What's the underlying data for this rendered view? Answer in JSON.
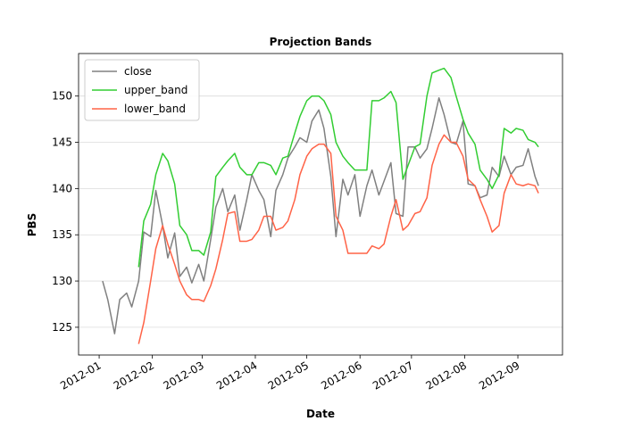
{
  "chart_data": {
    "type": "line",
    "title": "Projection Bands",
    "x_label": "Date",
    "y_label": "PBS",
    "x": [
      "2012-01-03",
      "2012-01-06",
      "2012-01-10",
      "2012-01-13",
      "2012-01-17",
      "2012-01-20",
      "2012-01-24",
      "2012-01-27",
      "2012-01-31",
      "2012-02-03",
      "2012-02-07",
      "2012-02-10",
      "2012-02-14",
      "2012-02-17",
      "2012-02-21",
      "2012-02-24",
      "2012-02-28",
      "2012-03-02",
      "2012-03-06",
      "2012-03-09",
      "2012-03-13",
      "2012-03-16",
      "2012-03-20",
      "2012-03-23",
      "2012-03-27",
      "2012-03-30",
      "2012-04-03",
      "2012-04-06",
      "2012-04-10",
      "2012-04-13",
      "2012-04-17",
      "2012-04-20",
      "2012-04-24",
      "2012-04-27",
      "2012-05-01",
      "2012-05-04",
      "2012-05-08",
      "2012-05-11",
      "2012-05-15",
      "2012-05-18",
      "2012-05-22",
      "2012-05-25",
      "2012-05-29",
      "2012-06-01",
      "2012-06-05",
      "2012-06-08",
      "2012-06-12",
      "2012-06-15",
      "2012-06-19",
      "2012-06-22",
      "2012-06-26",
      "2012-06-29",
      "2012-07-03",
      "2012-07-06",
      "2012-07-10",
      "2012-07-13",
      "2012-07-17",
      "2012-07-20",
      "2012-07-24",
      "2012-07-27",
      "2012-07-31",
      "2012-08-03",
      "2012-08-07",
      "2012-08-10",
      "2012-08-14",
      "2012-08-17",
      "2012-08-21",
      "2012-08-24",
      "2012-08-28",
      "2012-08-31",
      "2012-09-04",
      "2012-09-07",
      "2012-09-11",
      "2012-09-13"
    ],
    "series": [
      {
        "name": "close",
        "color": "#808080",
        "values": [
          130,
          128,
          124.3,
          128,
          128.7,
          127.2,
          130,
          135.3,
          134.8,
          139.8,
          136,
          132.5,
          135.2,
          130.5,
          131.5,
          129.8,
          131.8,
          130,
          134.5,
          138,
          140,
          137.5,
          139.3,
          135.5,
          138.8,
          141.5,
          139.8,
          138.8,
          134.8,
          139.8,
          141.5,
          143.3,
          144.5,
          145.5,
          145,
          147.3,
          148.5,
          146.5,
          141.3,
          134.8,
          141,
          139.3,
          141.5,
          137,
          140.3,
          142,
          139.3,
          140.8,
          142.8,
          137.3,
          137,
          144.5,
          144.5,
          143.3,
          144.3,
          146.5,
          149.8,
          148,
          145,
          144.8,
          147.3,
          140.5,
          140.3,
          139,
          139.3,
          142.3,
          141.3,
          143.5,
          141.5,
          142.3,
          142.5,
          144.3,
          141.3,
          140.3
        ]
      },
      {
        "name": "upper_band",
        "color": "#32cd32",
        "values": [
          null,
          null,
          null,
          null,
          null,
          null,
          131.5,
          136.5,
          138.3,
          141.5,
          143.8,
          143,
          140.5,
          136,
          135,
          133.3,
          133.3,
          132.8,
          135.3,
          141.3,
          142.3,
          143,
          143.8,
          142.3,
          141.5,
          141.5,
          142.8,
          142.8,
          142.5,
          141.5,
          143.3,
          143.5,
          146,
          147.8,
          149.5,
          150,
          150,
          149.5,
          148,
          145,
          143.5,
          142.8,
          142,
          142,
          142,
          149.5,
          149.5,
          149.8,
          150.5,
          149.3,
          141,
          142.5,
          144.5,
          144.8,
          150,
          152.5,
          152.8,
          153,
          152,
          150,
          147.5,
          146,
          144.8,
          142,
          141,
          140,
          141.5,
          146.5,
          146,
          146.5,
          146.3,
          145.3,
          145,
          144.5
        ]
      },
      {
        "name": "lower_band",
        "color": "#ff6347",
        "values": [
          null,
          null,
          null,
          null,
          null,
          null,
          123.2,
          125.5,
          130,
          133.5,
          136,
          134,
          131.8,
          130,
          128.5,
          128,
          128,
          127.8,
          129.5,
          131.3,
          134.5,
          137.3,
          137.5,
          134.3,
          134.3,
          134.5,
          135.5,
          137,
          137,
          135.5,
          135.8,
          136.5,
          138.8,
          141.5,
          143.5,
          144.3,
          144.8,
          144.8,
          143.8,
          137,
          135.5,
          133,
          133,
          133,
          133,
          133.8,
          133.5,
          134,
          137,
          138.8,
          135.5,
          136,
          137.3,
          137.5,
          139,
          142.5,
          144.8,
          145.8,
          145,
          145,
          143.5,
          141,
          140.3,
          138.8,
          137,
          135.3,
          136,
          139.5,
          141.5,
          140.5,
          140.3,
          140.5,
          140.3,
          139.5
        ]
      }
    ],
    "xlim": [
      "2011-12-20",
      "2012-09-27"
    ],
    "xticks": [
      {
        "value": "2012-01-01",
        "label": "2012-01"
      },
      {
        "value": "2012-02-01",
        "label": "2012-02"
      },
      {
        "value": "2012-03-01",
        "label": "2012-03"
      },
      {
        "value": "2012-04-01",
        "label": "2012-04"
      },
      {
        "value": "2012-05-01",
        "label": "2012-05"
      },
      {
        "value": "2012-06-01",
        "label": "2012-06"
      },
      {
        "value": "2012-07-01",
        "label": "2012-07"
      },
      {
        "value": "2012-08-01",
        "label": "2012-08"
      },
      {
        "value": "2012-09-01",
        "label": "2012-09"
      }
    ],
    "ylim": [
      122,
      154.6
    ],
    "yticks": [
      125,
      130,
      135,
      140,
      145,
      150
    ],
    "grid": "y",
    "legend": "upper left"
  }
}
